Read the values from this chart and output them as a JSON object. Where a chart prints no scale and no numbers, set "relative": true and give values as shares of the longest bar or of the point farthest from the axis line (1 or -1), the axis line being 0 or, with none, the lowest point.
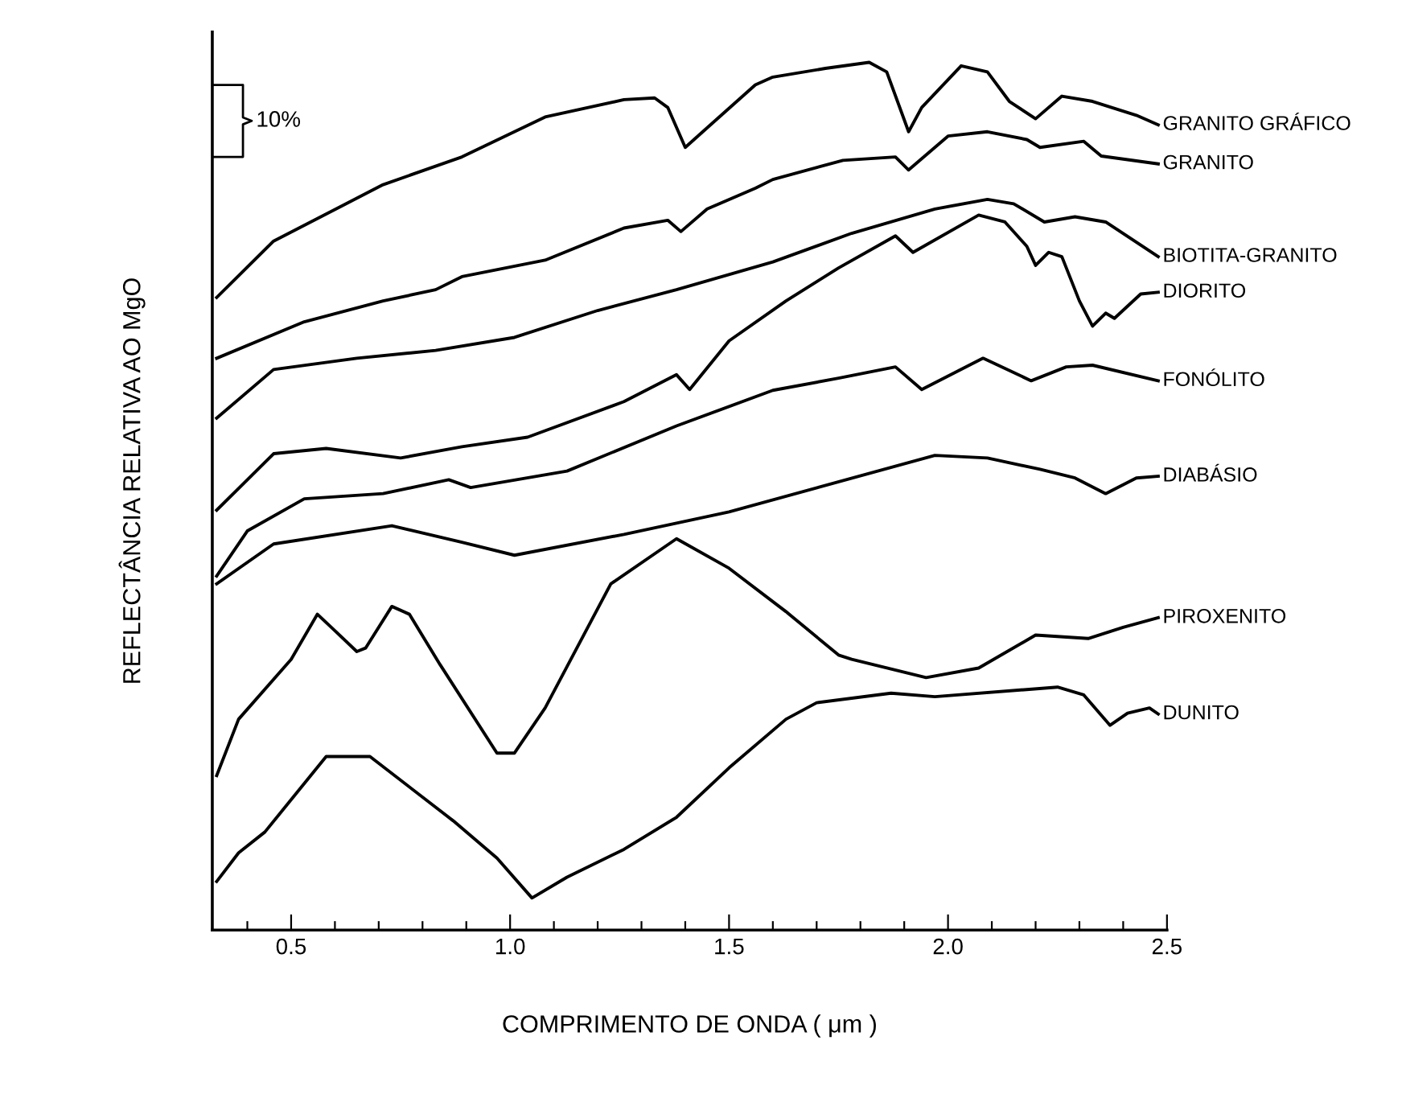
{
  "chart_data": {
    "type": "line",
    "relative": true,
    "xlabel": "COMPRIMENTO DE ONDA ( μm )",
    "ylabel": "REFLECTÂNCIA RELATIVA AO MgO",
    "annotations": [
      "10%"
    ],
    "xlim": [
      0.32,
      2.5
    ],
    "xticks": [
      {
        "value": 0.4,
        "label": null
      },
      0.5,
      {
        "value": 0.6,
        "label": null
      },
      {
        "value": 0.7,
        "label": null
      },
      {
        "value": 0.8,
        "label": null
      },
      {
        "value": 0.9,
        "label": null
      },
      {
        "value": 1.0,
        "label": "1.0"
      },
      {
        "value": 1.1,
        "label": null
      },
      {
        "value": 1.2,
        "label": null
      },
      {
        "value": 1.3,
        "label": null
      },
      {
        "value": 1.4,
        "label": null
      },
      1.5,
      {
        "value": 1.6,
        "label": null
      },
      {
        "value": 1.7,
        "label": null
      },
      {
        "value": 1.8,
        "label": null
      },
      {
        "value": 1.9,
        "label": null
      },
      {
        "value": 2.0,
        "label": "2.0"
      },
      {
        "value": 2.1,
        "label": null
      },
      {
        "value": 2.2,
        "label": null
      },
      {
        "value": 2.3,
        "label": null
      },
      {
        "value": 2.4,
        "label": null
      },
      2.5
    ],
    "grid": false,
    "legend": false,
    "series": [
      {
        "name": "GRANITO GRÁFICO",
        "color": "#000000",
        "x": [
          0.33,
          0.46,
          0.71,
          0.89,
          1.08,
          1.26,
          1.33,
          1.36,
          1.4,
          1.44,
          1.56,
          1.6,
          1.72,
          1.82,
          1.86,
          1.91,
          1.94,
          2.03,
          2.09,
          2.14,
          2.2,
          2.26,
          2.33,
          2.43,
          2.48
        ],
        "values": [
          0.729,
          0.794,
          0.859,
          0.891,
          0.937,
          0.957,
          0.959,
          0.948,
          0.902,
          0.92,
          0.974,
          0.983,
          0.993,
          1.0,
          0.989,
          0.92,
          0.948,
          0.996,
          0.989,
          0.955,
          0.935,
          0.961,
          0.955,
          0.939,
          0.928
        ]
      },
      {
        "name": "GRANITO",
        "color": "#000000",
        "x": [
          0.33,
          0.53,
          0.71,
          0.83,
          0.89,
          1.08,
          1.26,
          1.36,
          1.39,
          1.45,
          1.56,
          1.6,
          1.76,
          1.88,
          1.91,
          2.0,
          2.09,
          2.18,
          2.21,
          2.31,
          2.35,
          2.48
        ],
        "values": [
          0.659,
          0.701,
          0.725,
          0.738,
          0.753,
          0.772,
          0.809,
          0.818,
          0.805,
          0.831,
          0.855,
          0.865,
          0.887,
          0.891,
          0.876,
          0.915,
          0.92,
          0.911,
          0.902,
          0.909,
          0.892,
          0.883
        ]
      },
      {
        "name": "BIOTITA-GRANITO",
        "color": "#000000",
        "x": [
          0.33,
          0.46,
          0.65,
          0.83,
          1.01,
          1.2,
          1.38,
          1.6,
          1.78,
          1.97,
          2.09,
          2.15,
          2.22,
          2.29,
          2.36,
          2.48
        ],
        "values": [
          0.59,
          0.646,
          0.659,
          0.668,
          0.683,
          0.714,
          0.738,
          0.77,
          0.803,
          0.831,
          0.842,
          0.837,
          0.816,
          0.822,
          0.816,
          0.776
        ]
      },
      {
        "name": "DIORITO",
        "color": "#000000",
        "x": [
          0.33,
          0.46,
          0.58,
          0.75,
          0.89,
          1.04,
          1.26,
          1.38,
          1.41,
          1.5,
          1.63,
          1.75,
          1.88,
          1.92,
          2.07,
          2.13,
          2.18,
          2.2,
          2.23,
          2.26,
          2.3,
          2.33,
          2.36,
          2.38,
          2.44,
          2.48
        ],
        "values": [
          0.484,
          0.549,
          0.555,
          0.544,
          0.557,
          0.568,
          0.609,
          0.64,
          0.623,
          0.679,
          0.725,
          0.763,
          0.8,
          0.781,
          0.824,
          0.816,
          0.788,
          0.766,
          0.781,
          0.776,
          0.725,
          0.696,
          0.711,
          0.705,
          0.733,
          0.735
        ]
      },
      {
        "name": "FONÓLITO",
        "color": "#000000",
        "x": [
          0.33,
          0.4,
          0.53,
          0.71,
          0.86,
          0.91,
          1.13,
          1.38,
          1.6,
          1.75,
          1.88,
          1.94,
          2.08,
          2.19,
          2.27,
          2.33,
          2.48
        ],
        "values": [
          0.408,
          0.46,
          0.497,
          0.503,
          0.519,
          0.51,
          0.529,
          0.581,
          0.622,
          0.636,
          0.649,
          0.623,
          0.659,
          0.633,
          0.649,
          0.651,
          0.633
        ]
      },
      {
        "name": "DIABÁSIO",
        "color": "#000000",
        "x": [
          0.33,
          0.46,
          0.73,
          0.89,
          1.01,
          1.26,
          1.5,
          1.97,
          2.09,
          2.21,
          2.29,
          2.36,
          2.43,
          2.48
        ],
        "values": [
          0.399,
          0.445,
          0.466,
          0.447,
          0.432,
          0.456,
          0.482,
          0.547,
          0.544,
          0.531,
          0.521,
          0.503,
          0.521,
          0.523
        ]
      },
      {
        "name": "PIROXENITO",
        "color": "#000000",
        "x": [
          0.33,
          0.38,
          0.5,
          0.56,
          0.6,
          0.65,
          0.67,
          0.73,
          0.77,
          0.84,
          0.97,
          1.01,
          1.08,
          1.23,
          1.38,
          1.5,
          1.63,
          1.75,
          1.78,
          1.95,
          2.07,
          2.2,
          2.32,
          2.4,
          2.48
        ],
        "values": [
          0.178,
          0.243,
          0.312,
          0.364,
          0.345,
          0.321,
          0.325,
          0.373,
          0.364,
          0.306,
          0.204,
          0.204,
          0.256,
          0.399,
          0.451,
          0.417,
          0.367,
          0.317,
          0.312,
          0.291,
          0.302,
          0.34,
          0.336,
          0.349,
          0.36
        ]
      },
      {
        "name": "DUNITO",
        "color": "#000000",
        "x": [
          0.33,
          0.38,
          0.44,
          0.58,
          0.68,
          0.87,
          0.97,
          1.05,
          1.13,
          1.26,
          1.38,
          1.5,
          1.63,
          1.7,
          1.87,
          1.97,
          2.25,
          2.31,
          2.37,
          2.41,
          2.46,
          2.48
        ],
        "values": [
          0.056,
          0.089,
          0.113,
          0.2,
          0.2,
          0.126,
          0.083,
          0.037,
          0.061,
          0.093,
          0.13,
          0.187,
          0.243,
          0.262,
          0.273,
          0.269,
          0.28,
          0.271,
          0.236,
          0.25,
          0.256,
          0.249
        ]
      }
    ]
  }
}
